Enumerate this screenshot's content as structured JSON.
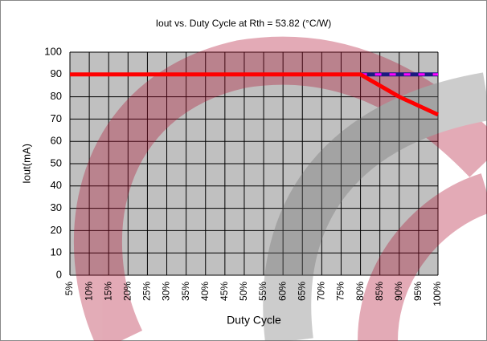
{
  "chart_data": {
    "type": "line",
    "title": "Iout vs. Duty Cycle at Rth = 53.82 (°C/W)",
    "x_label": "Duty Cycle",
    "y_label": "Iout(mA)",
    "categories": [
      "5%",
      "10%",
      "15%",
      "20%",
      "25%",
      "30%",
      "35%",
      "40%",
      "45%",
      "50%",
      "55%",
      "60%",
      "65%",
      "70%",
      "75%",
      "80%",
      "85%",
      "90%",
      "95%",
      "100%"
    ],
    "series": [
      {
        "color": "#ff0000",
        "values": [
          90,
          90,
          90,
          90,
          90,
          90,
          90,
          90,
          90,
          90,
          90,
          90,
          90,
          90,
          90,
          90,
          85,
          80,
          76,
          72
        ]
      },
      {
        "color": "#1a1a80",
        "dash_color": "#ff00ff",
        "values": [
          null,
          null,
          null,
          null,
          null,
          null,
          null,
          null,
          null,
          null,
          null,
          null,
          null,
          null,
          null,
          90,
          90,
          90,
          90,
          90
        ]
      }
    ],
    "ylim": [
      0,
      100
    ],
    "yticks": [
      0,
      10,
      20,
      30,
      40,
      50,
      60,
      70,
      80,
      90,
      100
    ],
    "grid": true,
    "plot_background": "#c0c0c0"
  }
}
